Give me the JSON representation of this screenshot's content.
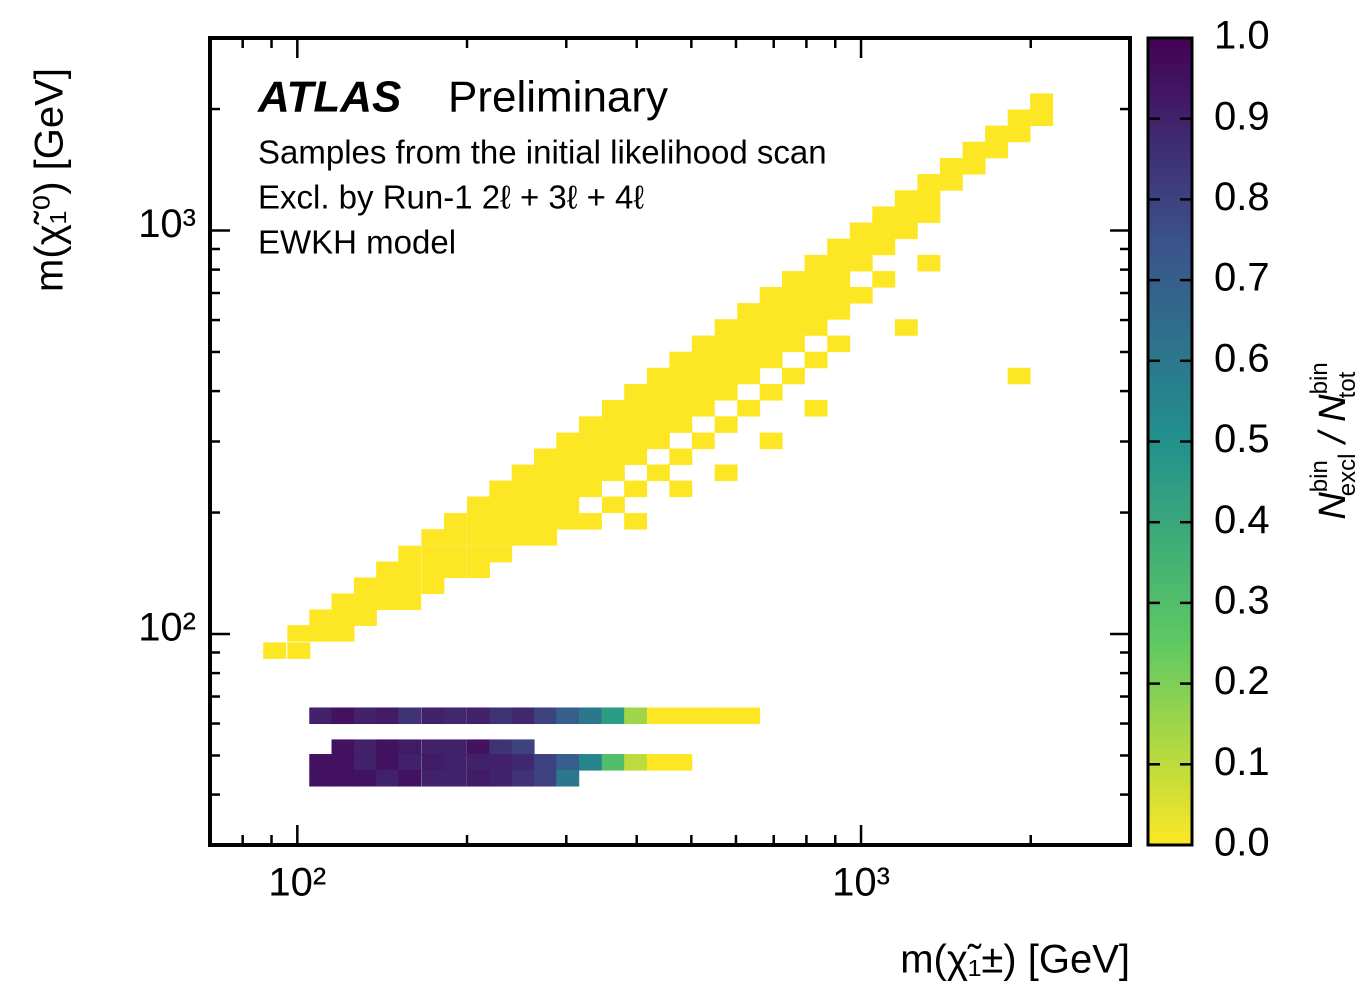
{
  "chart_data": {
    "type": "heatmap",
    "annotations": [
      "ATLAS",
      "Preliminary",
      "Samples from the initial likelihood scan",
      "Excl. by Run-1 2ℓ + 3ℓ + 4ℓ",
      "EWKH model"
    ],
    "xlabel": "m(χ̃₁±) [GeV]",
    "ylabel": "m(χ̃₁⁰) [GeV]",
    "colorbar_label": [
      "N",
      "bin",
      "excl",
      " / ",
      "N",
      "bin",
      "tot"
    ],
    "log_x": true,
    "log_y": true,
    "colormap": "viridis_r",
    "xlim": [
      70,
      3000
    ],
    "ylim": [
      30,
      3000
    ],
    "xticks": [
      {
        "value": 100,
        "label": "10²"
      },
      {
        "value": 1000,
        "label": "10³"
      }
    ],
    "yticks": [
      {
        "value": 100,
        "label": "10²"
      },
      {
        "value": 1000,
        "label": "10³"
      }
    ],
    "x_minor_ticks": [
      80,
      90,
      200,
      300,
      400,
      500,
      600,
      700,
      800,
      900,
      2000
    ],
    "y_minor_ticks": [
      40,
      50,
      60,
      70,
      80,
      90,
      200,
      300,
      400,
      500,
      600,
      700,
      800,
      900,
      2000
    ],
    "cbar_lim": [
      0,
      1
    ],
    "cbar_ticks": [
      {
        "value": 0,
        "label": "0.0"
      },
      0.1,
      0.2,
      0.3,
      0.4,
      0.5,
      0.6,
      0.7,
      0.8,
      0.9,
      {
        "value": 1,
        "label": "1.0"
      }
    ],
    "cells": [
      [
        87,
        87,
        0
      ],
      [
        96,
        87,
        0
      ],
      [
        96,
        96,
        0
      ],
      [
        105,
        96,
        0
      ],
      [
        105,
        105,
        0
      ],
      [
        115,
        96,
        0
      ],
      [
        115,
        105,
        0
      ],
      [
        115,
        115,
        0
      ],
      [
        126,
        105,
        0
      ],
      [
        126,
        115,
        0
      ],
      [
        126,
        126,
        0
      ],
      [
        138,
        115,
        0
      ],
      [
        138,
        126,
        0
      ],
      [
        138,
        138,
        0
      ],
      [
        151,
        115,
        0
      ],
      [
        151,
        126,
        0
      ],
      [
        151,
        138,
        0
      ],
      [
        151,
        151,
        0
      ],
      [
        166,
        126,
        0
      ],
      [
        166,
        138,
        0
      ],
      [
        166,
        151,
        0
      ],
      [
        166,
        166,
        0
      ],
      [
        182,
        138,
        0
      ],
      [
        182,
        151,
        0
      ],
      [
        182,
        166,
        0
      ],
      [
        182,
        182,
        0
      ],
      [
        200,
        138,
        0
      ],
      [
        200,
        151,
        0
      ],
      [
        200,
        166,
        0
      ],
      [
        200,
        182,
        0
      ],
      [
        200,
        200,
        0
      ],
      [
        219,
        151,
        0
      ],
      [
        219,
        166,
        0
      ],
      [
        219,
        182,
        0
      ],
      [
        219,
        200,
        0
      ],
      [
        219,
        219,
        0
      ],
      [
        240,
        166,
        0
      ],
      [
        240,
        182,
        0
      ],
      [
        240,
        200,
        0
      ],
      [
        240,
        219,
        0
      ],
      [
        240,
        240,
        0
      ],
      [
        263,
        166,
        0
      ],
      [
        263,
        182,
        0
      ],
      [
        263,
        200,
        0
      ],
      [
        263,
        219,
        0
      ],
      [
        263,
        240,
        0
      ],
      [
        263,
        263,
        0
      ],
      [
        288,
        182,
        0
      ],
      [
        288,
        200,
        0
      ],
      [
        288,
        219,
        0
      ],
      [
        288,
        240,
        0
      ],
      [
        288,
        263,
        0
      ],
      [
        288,
        288,
        0
      ],
      [
        316,
        182,
        0
      ],
      [
        316,
        219,
        0
      ],
      [
        316,
        240,
        0
      ],
      [
        316,
        263,
        0
      ],
      [
        316,
        288,
        0
      ],
      [
        316,
        316,
        0
      ],
      [
        347,
        200,
        0
      ],
      [
        347,
        240,
        0
      ],
      [
        347,
        263,
        0
      ],
      [
        347,
        288,
        0
      ],
      [
        347,
        316,
        0
      ],
      [
        347,
        347,
        0
      ],
      [
        380,
        182,
        0
      ],
      [
        380,
        219,
        0
      ],
      [
        380,
        263,
        0
      ],
      [
        380,
        288,
        0
      ],
      [
        380,
        316,
        0
      ],
      [
        380,
        347,
        0
      ],
      [
        380,
        380,
        0
      ],
      [
        417,
        240,
        0
      ],
      [
        417,
        288,
        0
      ],
      [
        417,
        316,
        0
      ],
      [
        417,
        347,
        0
      ],
      [
        417,
        380,
        0
      ],
      [
        417,
        417,
        0
      ],
      [
        457,
        219,
        0
      ],
      [
        457,
        263,
        0
      ],
      [
        457,
        316,
        0
      ],
      [
        457,
        347,
        0
      ],
      [
        457,
        380,
        0
      ],
      [
        457,
        417,
        0
      ],
      [
        457,
        457,
        0
      ],
      [
        501,
        288,
        0
      ],
      [
        501,
        347,
        0
      ],
      [
        501,
        380,
        0
      ],
      [
        501,
        417,
        0
      ],
      [
        501,
        457,
        0
      ],
      [
        501,
        501,
        0
      ],
      [
        550,
        240,
        0
      ],
      [
        550,
        316,
        0
      ],
      [
        550,
        380,
        0
      ],
      [
        550,
        417,
        0
      ],
      [
        550,
        457,
        0
      ],
      [
        550,
        501,
        0
      ],
      [
        550,
        550,
        0
      ],
      [
        603,
        347,
        0
      ],
      [
        603,
        417,
        0
      ],
      [
        603,
        457,
        0
      ],
      [
        603,
        501,
        0
      ],
      [
        603,
        550,
        0
      ],
      [
        603,
        603,
        0
      ],
      [
        661,
        288,
        0
      ],
      [
        661,
        380,
        0
      ],
      [
        661,
        457,
        0
      ],
      [
        661,
        501,
        0
      ],
      [
        661,
        550,
        0
      ],
      [
        661,
        603,
        0
      ],
      [
        661,
        661,
        0
      ],
      [
        724,
        417,
        0
      ],
      [
        724,
        501,
        0
      ],
      [
        724,
        550,
        0
      ],
      [
        724,
        603,
        0
      ],
      [
        724,
        661,
        0
      ],
      [
        724,
        724,
        0
      ],
      [
        794,
        347,
        0
      ],
      [
        794,
        457,
        0
      ],
      [
        794,
        550,
        0
      ],
      [
        794,
        603,
        0
      ],
      [
        794,
        661,
        0
      ],
      [
        794,
        724,
        0
      ],
      [
        794,
        794,
        0
      ],
      [
        871,
        501,
        0
      ],
      [
        871,
        603,
        0
      ],
      [
        871,
        661,
        0
      ],
      [
        871,
        724,
        0
      ],
      [
        871,
        794,
        0
      ],
      [
        871,
        871,
        0
      ],
      [
        955,
        661,
        0
      ],
      [
        955,
        794,
        0
      ],
      [
        955,
        871,
        0
      ],
      [
        955,
        955,
        0
      ],
      [
        1047,
        724,
        0
      ],
      [
        1047,
        871,
        0
      ],
      [
        1047,
        955,
        0
      ],
      [
        1047,
        1047,
        0
      ],
      [
        1148,
        550,
        0
      ],
      [
        1148,
        955,
        0
      ],
      [
        1148,
        1047,
        0
      ],
      [
        1148,
        1148,
        0
      ],
      [
        1259,
        794,
        0
      ],
      [
        1259,
        1047,
        0
      ],
      [
        1259,
        1148,
        0
      ],
      [
        1259,
        1259,
        0
      ],
      [
        1380,
        1259,
        0
      ],
      [
        1380,
        1380,
        0
      ],
      [
        1514,
        1380,
        0
      ],
      [
        1514,
        1514,
        0
      ],
      [
        1660,
        1514,
        0
      ],
      [
        1660,
        1660,
        0
      ],
      [
        1820,
        1660,
        0
      ],
      [
        1820,
        1820,
        0
      ],
      [
        1820,
        417,
        0
      ],
      [
        1995,
        1820,
        0
      ],
      [
        1995,
        1995,
        0
      ],
      [
        105,
        60,
        0.9
      ],
      [
        115,
        60,
        0.95
      ],
      [
        126,
        60,
        0.9
      ],
      [
        138,
        60,
        0.92
      ],
      [
        151,
        60,
        0.85
      ],
      [
        166,
        60,
        0.9
      ],
      [
        182,
        60,
        0.88
      ],
      [
        200,
        60,
        0.9
      ],
      [
        219,
        60,
        0.85
      ],
      [
        240,
        60,
        0.88
      ],
      [
        263,
        60,
        0.8
      ],
      [
        288,
        60,
        0.7
      ],
      [
        316,
        60,
        0.6
      ],
      [
        347,
        60,
        0.45
      ],
      [
        380,
        60,
        0.15
      ],
      [
        417,
        60,
        0
      ],
      [
        457,
        60,
        0
      ],
      [
        501,
        60,
        0
      ],
      [
        550,
        60,
        0
      ],
      [
        603,
        60,
        0
      ],
      [
        115,
        50,
        0.95
      ],
      [
        126,
        50,
        0.9
      ],
      [
        138,
        50,
        0.95
      ],
      [
        151,
        50,
        0.92
      ],
      [
        166,
        50,
        0.9
      ],
      [
        182,
        50,
        0.9
      ],
      [
        200,
        50,
        0.95
      ],
      [
        219,
        50,
        0.85
      ],
      [
        240,
        50,
        0.8
      ],
      [
        105,
        46,
        0.95
      ],
      [
        115,
        46,
        0.95
      ],
      [
        126,
        46,
        0.9
      ],
      [
        138,
        46,
        0.95
      ],
      [
        151,
        46,
        0.9
      ],
      [
        166,
        46,
        0.92
      ],
      [
        182,
        46,
        0.9
      ],
      [
        200,
        46,
        0.9
      ],
      [
        219,
        46,
        0.9
      ],
      [
        240,
        46,
        0.88
      ],
      [
        263,
        46,
        0.8
      ],
      [
        288,
        46,
        0.7
      ],
      [
        316,
        46,
        0.55
      ],
      [
        347,
        46,
        0.3
      ],
      [
        380,
        46,
        0.1
      ],
      [
        417,
        46,
        0
      ],
      [
        457,
        46,
        0
      ],
      [
        105,
        42,
        0.95
      ],
      [
        115,
        42,
        0.95
      ],
      [
        126,
        42,
        0.95
      ],
      [
        138,
        42,
        0.9
      ],
      [
        151,
        42,
        0.95
      ],
      [
        166,
        42,
        0.9
      ],
      [
        182,
        42,
        0.9
      ],
      [
        200,
        42,
        0.92
      ],
      [
        219,
        42,
        0.9
      ],
      [
        240,
        42,
        0.85
      ],
      [
        263,
        42,
        0.8
      ],
      [
        288,
        42,
        0.6
      ]
    ]
  }
}
